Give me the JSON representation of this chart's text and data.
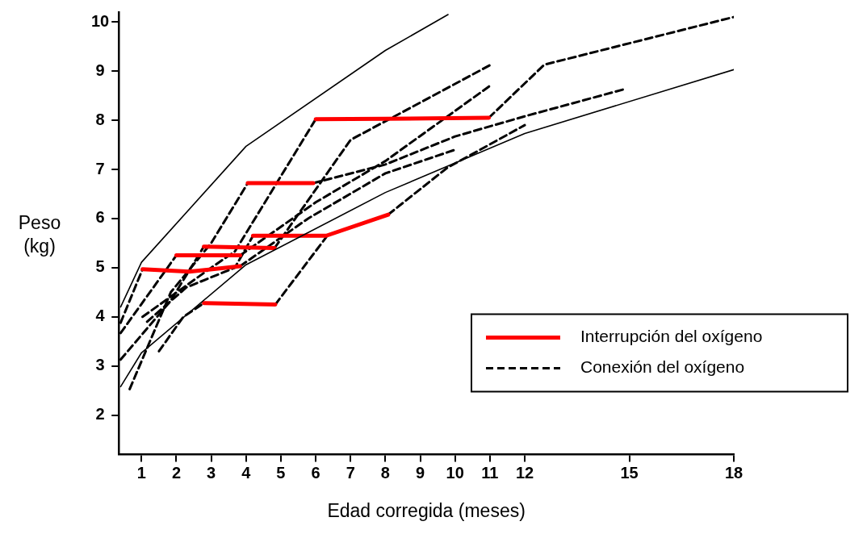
{
  "chart_data": {
    "type": "line",
    "xlabel": "Edad corregida (meses)",
    "ylabel": "Peso (kg)",
    "xlim": [
      0.35,
      18
    ],
    "xticks": [
      1,
      2,
      3,
      4,
      5,
      6,
      7,
      8,
      9,
      10,
      11,
      12,
      15,
      18
    ],
    "ylim": [
      1.2,
      10.2
    ],
    "yticks": [
      2,
      3,
      4,
      5,
      6,
      7,
      8,
      9,
      10
    ],
    "legend": "bottom right",
    "series": [
      {
        "color": "#000000",
        "line_style": "solid",
        "x": [
          0.4,
          1,
          4,
          8,
          9.8
        ],
        "values": [
          4.2,
          5.11,
          7.47,
          9.42,
          10.15
        ]
      },
      {
        "color": "#000000",
        "line_style": "solid",
        "x": [
          0.4,
          1,
          4,
          8,
          12,
          18
        ],
        "values": [
          2.58,
          3.27,
          5.06,
          6.53,
          7.73,
          9.03
        ]
      },
      {
        "name": "Interrupción del oxígeno",
        "color": "#ff0000",
        "line_style": "solid",
        "x": [
          1.03,
          2.37,
          3.83
        ],
        "values": [
          4.97,
          4.92,
          5.03
        ]
      },
      {
        "color": "#ff0000",
        "line_style": "solid",
        "x": [
          2,
          3.83
        ],
        "values": [
          5.25,
          5.25
        ]
      },
      {
        "color": "#ff0000",
        "line_style": "solid",
        "x": [
          2.79,
          4.82
        ],
        "values": [
          5.43,
          5.4
        ]
      },
      {
        "color": "#ff0000",
        "line_style": "solid",
        "x": [
          2.79,
          4.84
        ],
        "values": [
          4.28,
          4.25
        ]
      },
      {
        "color": "#ff0000",
        "line_style": "solid",
        "x": [
          4.2,
          6.3,
          8.08
        ],
        "values": [
          5.65,
          5.65,
          6.08
        ]
      },
      {
        "color": "#ff0000",
        "line_style": "solid",
        "x": [
          4.05,
          5.93
        ],
        "values": [
          6.72,
          6.72
        ]
      },
      {
        "color": "#ff0000",
        "line_style": "solid",
        "x": [
          6,
          8,
          10.97
        ],
        "values": [
          8.02,
          8.03,
          8.05
        ]
      },
      {
        "name": "Conexión del oxígeno",
        "color": "#000000",
        "line_style": "dashed",
        "x": [
          0.4,
          1.03
        ],
        "values": [
          3.88,
          4.97
        ]
      },
      {
        "color": "#000000",
        "line_style": "dashed",
        "x": [
          3.83,
          5.78,
          8,
          10
        ],
        "values": [
          5.03,
          6.0,
          6.92,
          7.4
        ]
      },
      {
        "color": "#000000",
        "line_style": "dashed",
        "x": [
          0.4,
          2
        ],
        "values": [
          3.67,
          5.25
        ]
      },
      {
        "color": "#000000",
        "line_style": "dashed",
        "x": [
          3.83,
          6,
          8,
          11
        ],
        "values": [
          5.25,
          6.33,
          7.17,
          8.7
        ]
      },
      {
        "color": "#000000",
        "line_style": "dashed",
        "x": [
          0.4,
          1.84,
          2.79
        ],
        "values": [
          3.13,
          4.33,
          5.43
        ]
      },
      {
        "color": "#000000",
        "line_style": "dashed",
        "x": [
          4.82,
          7,
          11
        ],
        "values": [
          5.4,
          7.6,
          9.12
        ]
      },
      {
        "color": "#000000",
        "line_style": "dashed",
        "x": [
          0.66,
          1.84,
          3,
          4.05
        ],
        "values": [
          2.53,
          4.5,
          5.5,
          6.72
        ]
      },
      {
        "color": "#000000",
        "line_style": "dashed",
        "x": [
          5.93,
          8,
          10,
          12,
          14.85
        ],
        "values": [
          6.72,
          7.1,
          7.67,
          8.08,
          8.63
        ]
      },
      {
        "color": "#000000",
        "line_style": "dashed",
        "x": [
          1.03,
          3,
          3.68,
          6
        ],
        "values": [
          4.0,
          5.0,
          5.33,
          8.02
        ]
      },
      {
        "color": "#000000",
        "line_style": "dashed",
        "x": [
          10.97,
          12.56,
          18
        ],
        "values": [
          8.05,
          9.13,
          10.1
        ]
      },
      {
        "color": "#000000",
        "line_style": "dashed",
        "x": [
          1.5,
          2.2,
          2.79
        ],
        "values": [
          3.3,
          4.0,
          4.28
        ]
      },
      {
        "color": "#000000",
        "line_style": "dashed",
        "x": [
          4.84,
          6.3
        ],
        "values": [
          4.25,
          5.62
        ]
      },
      {
        "color": "#000000",
        "line_style": "dashed",
        "x": [
          1.16,
          2.29,
          3.68,
          4.2
        ],
        "values": [
          3.9,
          4.6,
          5.0,
          5.65
        ]
      },
      {
        "color": "#000000",
        "line_style": "dashed",
        "x": [
          8.08,
          9.77,
          12
        ],
        "values": [
          6.08,
          7.03,
          7.9
        ]
      }
    ]
  }
}
